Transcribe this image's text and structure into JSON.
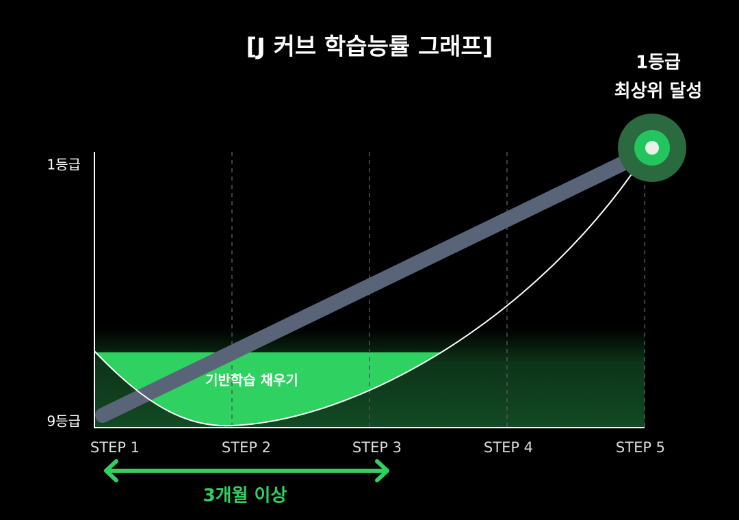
{
  "title": "[J 커브 학습능률 그래프]",
  "y_labels": [
    "1등급",
    "9등급"
  ],
  "steps": [
    "STEP 1",
    "STEP 2",
    "STEP 3",
    "STEP 4",
    "STEP 5"
  ],
  "goal": [
    "1등급",
    "최상위 달성"
  ],
  "fill_label": "기반학습 채우기",
  "duration": "3개월 이상"
}
